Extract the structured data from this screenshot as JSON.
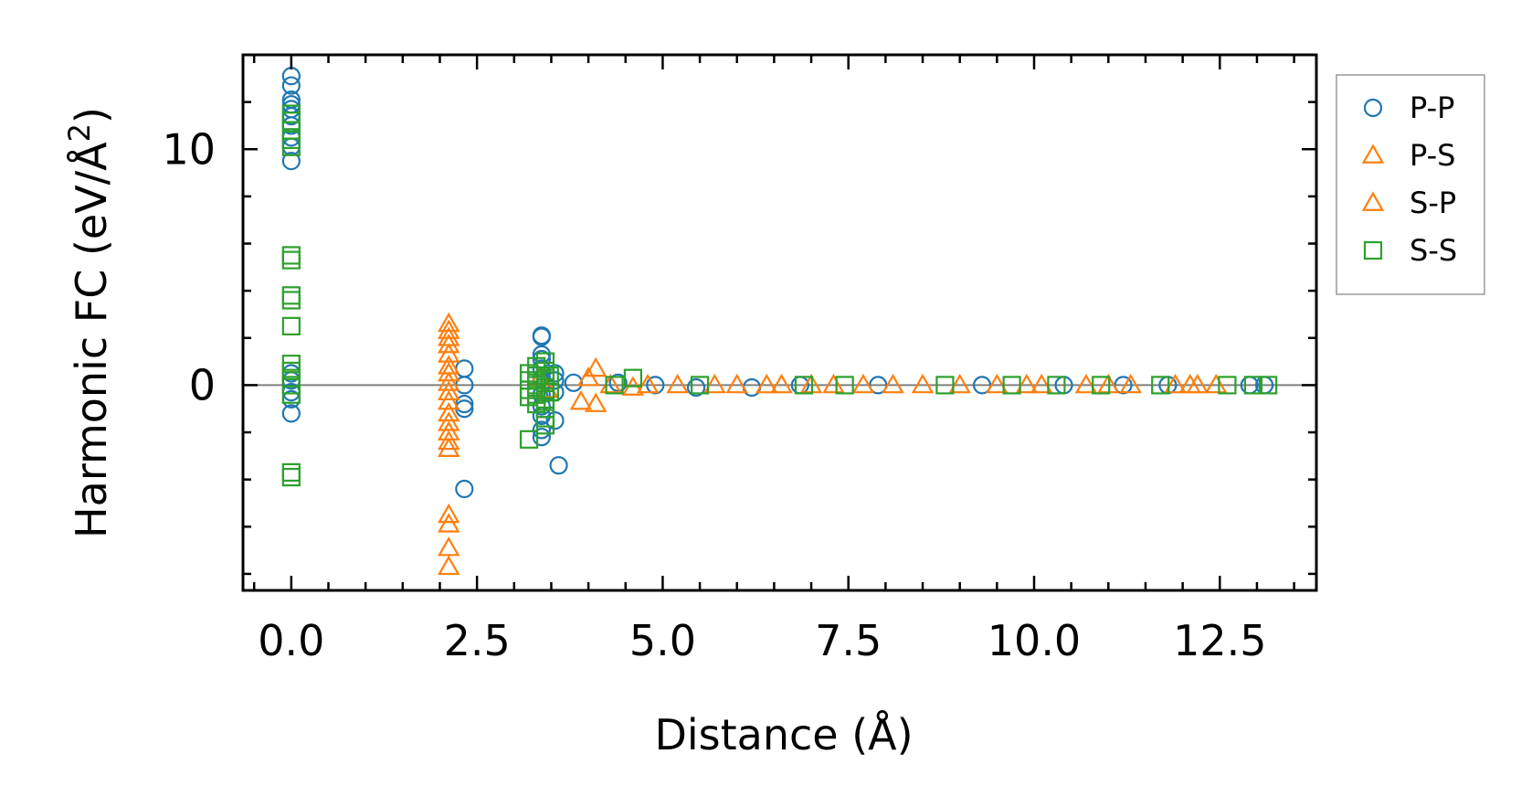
{
  "chart_data": {
    "type": "scatter",
    "xlabel": "Distance (Å)",
    "ylabel_main": "Harmonic FC (eV/Å",
    "ylabel_sup": "2",
    "ylabel_close": ")",
    "xlim": [
      -0.65,
      13.8
    ],
    "ylim": [
      -8.7,
      14.0
    ],
    "xticks": [
      0,
      2.5,
      5,
      7.5,
      10,
      12.5
    ],
    "xtick_labels": [
      "0.0",
      "2.5",
      "5.0",
      "7.5",
      "10.0",
      "12.5"
    ],
    "yticks": [
      0,
      10
    ],
    "ytick_labels": [
      "0",
      "10"
    ],
    "zero_line": true,
    "legend_position": "outside right",
    "series": [
      {
        "name": "P-P",
        "marker": "circle",
        "color": "#1f77b4",
        "points": [
          [
            0,
            13.1
          ],
          [
            0,
            12.7
          ],
          [
            0,
            12.1
          ],
          [
            0,
            11.9
          ],
          [
            0,
            11.7
          ],
          [
            0,
            11.4
          ],
          [
            0,
            11.0
          ],
          [
            0,
            10.5
          ],
          [
            0,
            10.1
          ],
          [
            0,
            9.5
          ],
          [
            0,
            0.5
          ],
          [
            0,
            0.2
          ],
          [
            0,
            -0.3
          ],
          [
            0,
            -0.6
          ],
          [
            0,
            -1.2
          ],
          [
            2.33,
            0.7
          ],
          [
            2.33,
            0.0
          ],
          [
            2.33,
            -0.8
          ],
          [
            2.33,
            -1.0
          ],
          [
            2.33,
            -4.4
          ],
          [
            3.37,
            2.1
          ],
          [
            3.37,
            2.05
          ],
          [
            3.37,
            1.3
          ],
          [
            3.37,
            1.1
          ],
          [
            3.37,
            0.7
          ],
          [
            3.37,
            0.3
          ],
          [
            3.37,
            -0.4
          ],
          [
            3.37,
            -0.9
          ],
          [
            3.37,
            -1.3
          ],
          [
            3.37,
            -1.9
          ],
          [
            3.37,
            -2.2
          ],
          [
            3.55,
            0.5
          ],
          [
            3.55,
            0.2
          ],
          [
            3.55,
            -0.3
          ],
          [
            3.55,
            -1.5
          ],
          [
            3.6,
            -3.4
          ],
          [
            3.8,
            0.1
          ],
          [
            4.4,
            0.1
          ],
          [
            4.9,
            0.0
          ],
          [
            5.45,
            -0.1
          ],
          [
            6.2,
            -0.1
          ],
          [
            6.85,
            0.0
          ],
          [
            7.9,
            0.0
          ],
          [
            9.3,
            0.0
          ],
          [
            10.4,
            0.0
          ],
          [
            11.2,
            0.0
          ],
          [
            11.8,
            0.0
          ],
          [
            12.9,
            0.0
          ],
          [
            13.1,
            0.0
          ]
        ]
      },
      {
        "name": "P-S",
        "marker": "triangle",
        "color": "#ff7f0e",
        "points": [
          [
            2.12,
            2.6
          ],
          [
            2.12,
            2.3
          ],
          [
            2.12,
            2.0
          ],
          [
            2.12,
            1.7
          ],
          [
            2.12,
            1.3
          ],
          [
            2.12,
            0.8
          ],
          [
            2.12,
            0.5
          ],
          [
            2.12,
            0.1
          ],
          [
            2.12,
            -0.3
          ],
          [
            2.12,
            -0.7
          ],
          [
            2.12,
            -1.2
          ],
          [
            2.12,
            -1.6
          ],
          [
            2.12,
            -2.0
          ],
          [
            2.12,
            -2.4
          ],
          [
            2.12,
            -2.7
          ],
          [
            2.12,
            -5.5
          ],
          [
            2.12,
            -5.9
          ],
          [
            2.12,
            -6.9
          ],
          [
            2.12,
            -7.7
          ],
          [
            3.9,
            -0.7
          ],
          [
            4.1,
            0.7
          ],
          [
            4.1,
            -0.8
          ],
          [
            4.6,
            -0.1
          ],
          [
            5.2,
            0.0
          ],
          [
            6.0,
            0.0
          ],
          [
            6.6,
            0.0
          ],
          [
            7.3,
            0.0
          ],
          [
            8.1,
            0.0
          ],
          [
            9.0,
            0.0
          ],
          [
            9.9,
            0.0
          ],
          [
            10.7,
            0.0
          ],
          [
            11.3,
            0.0
          ],
          [
            12.1,
            0.0
          ],
          [
            12.45,
            0.0
          ]
        ]
      },
      {
        "name": "S-P",
        "marker": "triangle",
        "color": "#ff7f0e",
        "points": [
          [
            3.35,
            0.3
          ],
          [
            3.45,
            -0.2
          ],
          [
            4.0,
            0.3
          ],
          [
            4.3,
            0.0
          ],
          [
            4.8,
            0.0
          ],
          [
            5.7,
            0.0
          ],
          [
            6.4,
            0.0
          ],
          [
            7.0,
            0.0
          ],
          [
            7.7,
            0.0
          ],
          [
            8.5,
            0.0
          ],
          [
            9.5,
            0.0
          ],
          [
            10.1,
            0.0
          ],
          [
            11.0,
            0.0
          ],
          [
            11.9,
            0.0
          ],
          [
            12.2,
            0.0
          ]
        ]
      },
      {
        "name": "S-S",
        "marker": "square",
        "color": "#2ca02c",
        "points": [
          [
            0,
            11.5
          ],
          [
            0,
            11.2
          ],
          [
            0,
            10.8
          ],
          [
            0,
            10.4
          ],
          [
            0,
            10.1
          ],
          [
            0,
            5.5
          ],
          [
            0,
            5.3
          ],
          [
            0,
            3.8
          ],
          [
            0,
            3.6
          ],
          [
            0,
            2.5
          ],
          [
            0,
            0.9
          ],
          [
            0,
            0.6
          ],
          [
            0,
            0.3
          ],
          [
            0,
            0.0
          ],
          [
            0,
            -0.4
          ],
          [
            0,
            -3.7
          ],
          [
            0,
            -3.9
          ],
          [
            3.2,
            0.5
          ],
          [
            3.2,
            0.2
          ],
          [
            3.2,
            -0.2
          ],
          [
            3.2,
            -0.5
          ],
          [
            3.2,
            -2.3
          ],
          [
            3.3,
            0.8
          ],
          [
            3.3,
            0.4
          ],
          [
            3.3,
            0.0
          ],
          [
            3.3,
            -0.4
          ],
          [
            3.3,
            -0.8
          ],
          [
            3.42,
            1.0
          ],
          [
            3.42,
            0.6
          ],
          [
            3.42,
            0.2
          ],
          [
            3.42,
            -0.2
          ],
          [
            3.42,
            -0.6
          ],
          [
            3.42,
            -1.0
          ],
          [
            3.42,
            -1.4
          ],
          [
            3.42,
            -1.7
          ],
          [
            3.48,
            0.4
          ],
          [
            3.48,
            -0.3
          ],
          [
            4.35,
            0.0
          ],
          [
            4.6,
            0.3
          ],
          [
            5.5,
            0.0
          ],
          [
            6.9,
            0.0
          ],
          [
            7.45,
            0.0
          ],
          [
            8.8,
            0.0
          ],
          [
            9.7,
            0.0
          ],
          [
            10.3,
            0.0
          ],
          [
            10.9,
            0.0
          ],
          [
            11.7,
            0.0
          ],
          [
            12.6,
            0.0
          ],
          [
            12.95,
            0.0
          ],
          [
            13.15,
            0.0
          ]
        ]
      }
    ]
  }
}
